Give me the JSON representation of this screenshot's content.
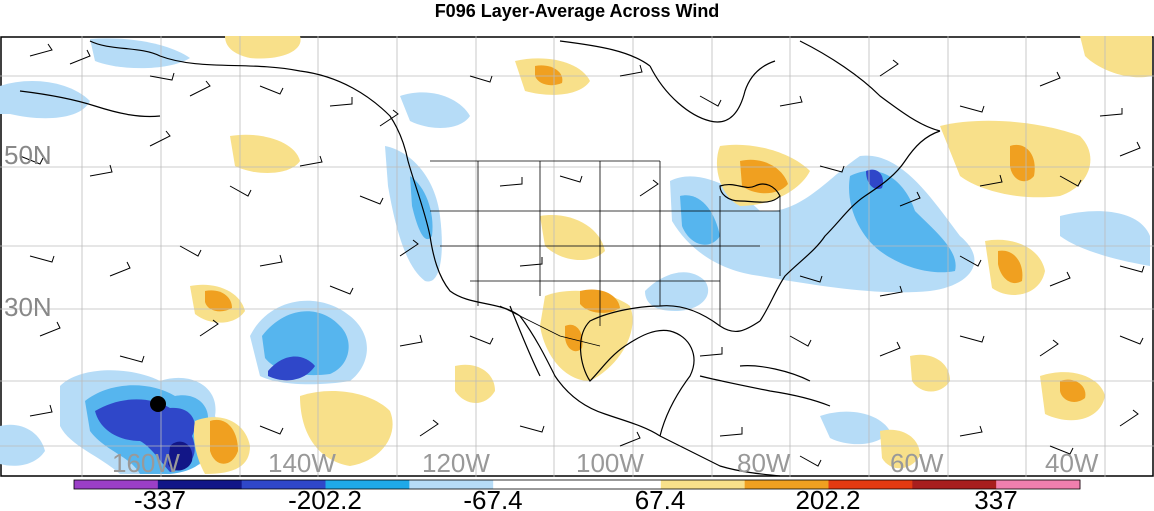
{
  "title": "F096 Layer-Average Across Wind",
  "map": {
    "lat_labels": [
      "50N",
      "30N"
    ],
    "lon_labels": [
      "160W",
      "140W",
      "120W",
      "100W",
      "80W",
      "60W",
      "40W"
    ],
    "storm_marker": "black-dot"
  },
  "colorbar": {
    "colors": [
      "#9b3fc7",
      "#121687",
      "#2f47c9",
      "#1fa9e8",
      "#b6dcf7",
      "#ffffff",
      "#ffffff",
      "#f8e08a",
      "#f0a020",
      "#e33a12",
      "#a81e1e",
      "#f07fae"
    ],
    "ticks": [
      "-337",
      "-202.2",
      "-67.4",
      "67.4",
      "202.2",
      "337"
    ]
  },
  "colors": {
    "neg_light": "#b6dcf7",
    "neg_mid": "#56b5ee",
    "neg_strong": "#2f47c9",
    "neg_max": "#121687",
    "pos_light": "#f8e08a",
    "pos_mid": "#f0a020",
    "gridline": "#bbbbbb",
    "coast": "#000000"
  }
}
